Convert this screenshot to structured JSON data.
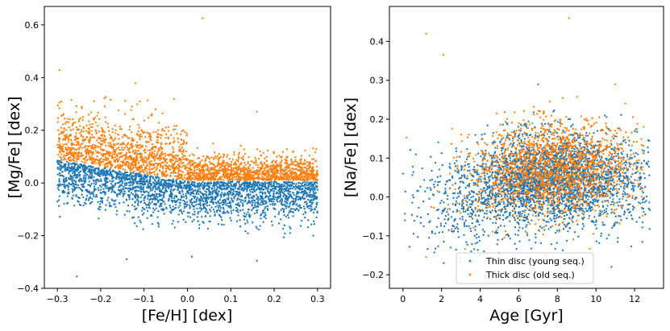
{
  "chart_data": [
    {
      "type": "scatter",
      "title": "",
      "xlabel": "[Fe/H] [dex]",
      "ylabel": "[Mg/Fe] [dex]",
      "xlim": [
        -0.33,
        0.33
      ],
      "ylim": [
        -0.4,
        0.67
      ],
      "xticks": [
        -0.3,
        -0.2,
        -0.1,
        0.0,
        0.1,
        0.2,
        0.3
      ],
      "xtick_labels": [
        "−0.3",
        "−0.2",
        "−0.1",
        "0.0",
        "0.1",
        "0.2",
        "0.3"
      ],
      "yticks": [
        -0.4,
        -0.2,
        0.0,
        0.2,
        0.4,
        0.6
      ],
      "ytick_labels": [
        "−0.4",
        "−0.2",
        "0.0",
        "0.2",
        "0.4",
        "0.6"
      ],
      "grid": false,
      "series": [
        {
          "name": "Thin disc (young seq.)",
          "color": "#1f77b4",
          "count": 2600,
          "relation": "[Mg/Fe] ≈ -0.27·[Fe/H], capped at 0 for [Fe/H] > 0, scatter ±0.05 dex",
          "x_range": [
            -0.3,
            0.3
          ],
          "notable_points": [
            [
              -0.255,
              -0.355
            ],
            [
              -0.14,
              -0.29
            ],
            [
              0.01,
              -0.28
            ],
            [
              0.16,
              -0.295
            ],
            [
              0.29,
              -0.2
            ]
          ]
        },
        {
          "name": "Thick disc (old seq.)",
          "color": "#ff7f0e",
          "count": 2400,
          "relation": "[Mg/Fe] ≈ 0.05 - 0.47·[Fe/H] above the thin-disc envelope, scatter to +0.2 dex",
          "x_range": [
            -0.3,
            0.3
          ],
          "notable_points": [
            [
              -0.295,
              0.428
            ],
            [
              -0.12,
              0.378
            ],
            [
              -0.11,
              0.31
            ],
            [
              0.035,
              0.625
            ],
            [
              0.16,
              0.27
            ]
          ]
        }
      ]
    },
    {
      "type": "scatter",
      "title": "",
      "xlabel": "Age [Gyr]",
      "ylabel": "[Na/Fe] [dex]",
      "xlim": [
        -0.7,
        13.5
      ],
      "ylim": [
        -0.235,
        0.49
      ],
      "xticks": [
        0,
        2,
        4,
        6,
        8,
        10,
        12
      ],
      "xtick_labels": [
        "0",
        "2",
        "4",
        "6",
        "8",
        "10",
        "12"
      ],
      "yticks": [
        -0.2,
        -0.1,
        0.0,
        0.1,
        0.2,
        0.3,
        0.4
      ],
      "ytick_labels": [
        "−0.2",
        "−0.1",
        "0.0",
        "0.1",
        "0.2",
        "0.3",
        "0.4"
      ],
      "grid": false,
      "legend": {
        "location": "lower center",
        "entries": [
          {
            "label": "Thin disc (young seq.)",
            "color": "#1f77b4"
          },
          {
            "label": "Thick disc (old seq.)",
            "color": "#ff7f0e"
          }
        ]
      },
      "series": [
        {
          "name": "Thin disc (young seq.)",
          "color": "#1f77b4",
          "count": 2600,
          "age_range_gyr": [
            0,
            12.8
          ],
          "relation": "mean [Na/Fe] ≈ 0.0 at 2-4 Gyr rising to ≈ 0.05 at 6-8 Gyr, scatter ±0.06 dex",
          "notable_points": [
            [
              0.1,
              -0.06
            ],
            [
              0.0,
              0.06
            ],
            [
              4.2,
              -0.14
            ],
            [
              7.0,
              0.29
            ],
            [
              10.8,
              -0.18
            ],
            [
              12.6,
              -0.01
            ]
          ]
        },
        {
          "name": "Thick disc (old seq.)",
          "color": "#ff7f0e",
          "count": 2400,
          "age_range_gyr": [
            0,
            12.5
          ],
          "relation": "mean [Na/Fe] ≈ 0.07 peaking at 6-9 Gyr, scatter ±0.06 dex",
          "notable_points": [
            [
              1.2,
              0.42
            ],
            [
              2.1,
              0.365
            ],
            [
              8.6,
              0.46
            ],
            [
              11.0,
              0.29
            ],
            [
              1.2,
              -0.155
            ],
            [
              8.8,
              -0.155
            ]
          ]
        }
      ]
    }
  ]
}
